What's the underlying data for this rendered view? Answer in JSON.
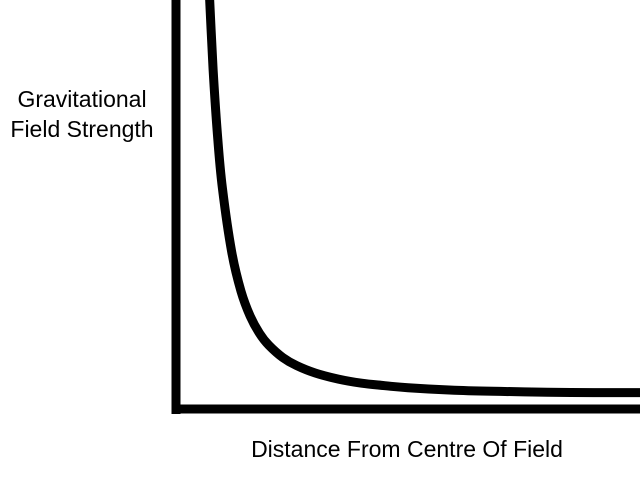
{
  "colors": {
    "background": "#ffffff",
    "ink": "#000000"
  },
  "chart_data": {
    "type": "line",
    "title": "",
    "xlabel": "Distance From Centre Of Field",
    "ylabel_lines": [
      "Gravitational",
      "Field Strength"
    ],
    "x_ticks": [],
    "y_ticks": [],
    "grid": false,
    "legend": "none",
    "xlim": [
      0,
      10
    ],
    "ylim": [
      0,
      10
    ],
    "series": [
      {
        "values_note_free": true,
        "x": [
          0.7,
          0.8,
          0.9,
          1.0,
          1.2,
          1.4,
          1.6,
          1.8,
          2.0,
          2.3,
          2.6,
          3.0,
          3.5,
          4.0,
          4.5,
          5.0,
          6.0,
          7.0,
          8.0,
          9.0,
          10.0
        ],
        "y": [
          10.6,
          8.3,
          6.6,
          5.4,
          3.84,
          2.88,
          2.27,
          1.85,
          1.56,
          1.26,
          1.06,
          0.88,
          0.73,
          0.63,
          0.57,
          0.52,
          0.46,
          0.43,
          0.41,
          0.4,
          0.4
        ]
      }
    ]
  }
}
